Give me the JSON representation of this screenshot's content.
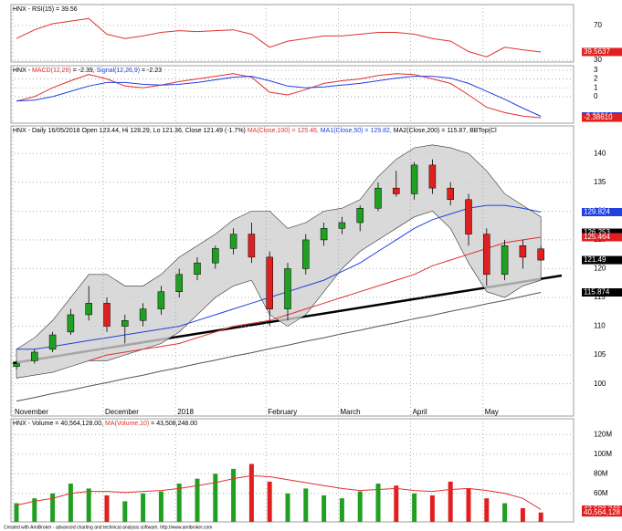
{
  "chart_data": [
    {
      "type": "line",
      "title": [
        {
          "text": "HNX - RSI(15) = 39.56",
          "color": "#000000"
        }
      ],
      "ylim": [
        28,
        94
      ],
      "yticks": [
        30,
        70
      ],
      "series": [
        {
          "name": "RSI(15)",
          "color": "#e03030",
          "values": [
            55,
            65,
            72,
            75,
            78,
            60,
            55,
            58,
            62,
            64,
            63,
            64,
            65,
            60,
            45,
            52,
            55,
            58,
            58,
            60,
            62,
            62,
            60,
            55,
            52,
            40,
            34,
            45,
            42,
            39.56
          ]
        }
      ],
      "price_tags": [
        {
          "value": 39.5637,
          "label": "39.5637",
          "color": "#e02020"
        }
      ]
    },
    {
      "type": "line",
      "title": [
        {
          "text": "HNX - ",
          "color": "#000000"
        },
        {
          "text": "MACD(12,26)",
          "color": "#e03030"
        },
        {
          "text": " = -2.39, ",
          "color": "#000000"
        },
        {
          "text": "Signal(12,26,9)",
          "color": "#2040e0"
        },
        {
          "text": " = -2.23",
          "color": "#000000"
        }
      ],
      "ylim": [
        -3,
        3.5
      ],
      "yticks": [
        3,
        2,
        1,
        0
      ],
      "series": [
        {
          "name": "MACD(12,26)",
          "color": "#e03030",
          "values": [
            -0.5,
            0,
            1,
            1.8,
            2.5,
            2,
            1.2,
            1,
            1.3,
            1.7,
            2,
            2.3,
            2.6,
            2.2,
            0.5,
            0.2,
            0.8,
            1.5,
            1.8,
            2,
            2.4,
            2.6,
            2.5,
            2,
            1.5,
            0.2,
            -1.2,
            -1.8,
            -2.2,
            -2.39
          ]
        },
        {
          "name": "Signal(12,26,9)",
          "color": "#2040e0",
          "values": [
            -0.5,
            -0.4,
            0,
            0.6,
            1.2,
            1.6,
            1.6,
            1.4,
            1.3,
            1.4,
            1.6,
            1.9,
            2.2,
            2.3,
            1.8,
            1.2,
            1,
            1.1,
            1.3,
            1.5,
            1.8,
            2.1,
            2.3,
            2.3,
            2.1,
            1.5,
            0.6,
            -0.3,
            -1.3,
            -2.23
          ]
        }
      ],
      "price_tags": [
        {
          "value": -2.23064,
          "label": "-2.23064",
          "color": "#2040e0"
        },
        {
          "value": -2.3861,
          "label": "-2.38610",
          "color": "#e02020"
        }
      ]
    },
    {
      "type": "candlestick",
      "title": [
        {
          "text": "HNX - Daily 16/05/2018 Open 123.44, Hi 128.29, Lo 121.36, Close 121.49 (-1.7%) ",
          "color": "#000000"
        },
        {
          "text": "MA(Close,100) = 125.46, ",
          "color": "#e03030"
        },
        {
          "text": "MA1(Close,50) = 129.82, ",
          "color": "#2040e0"
        },
        {
          "text": "MA2(Close,200) = 115.87, BBTop(Cl",
          "color": "#000000"
        }
      ],
      "categories": [
        "November",
        null,
        null,
        null,
        null,
        "December",
        null,
        null,
        null,
        "2018",
        null,
        null,
        null,
        null,
        "February",
        null,
        null,
        null,
        "March",
        null,
        null,
        null,
        "April",
        null,
        null,
        null,
        "May",
        null,
        null,
        null
      ],
      "ylim": [
        94.4,
        144.8
      ],
      "yticks": [
        100,
        105,
        110,
        115,
        120,
        125,
        130,
        135,
        140
      ],
      "up_color": "#20a020",
      "down_color": "#e02020",
      "open": [
        103,
        104,
        106,
        109,
        112,
        114,
        110,
        111,
        113,
        116,
        119,
        121,
        123.5,
        126,
        122,
        113,
        120,
        125,
        127,
        128,
        130.5,
        134,
        133,
        138,
        134,
        132,
        126,
        119,
        124,
        123.44
      ],
      "high": [
        104,
        106,
        109,
        113,
        117,
        115,
        112,
        114,
        117,
        120,
        122,
        124,
        127,
        128,
        123,
        121,
        126,
        128,
        129,
        131,
        135,
        137,
        138.5,
        139,
        135,
        133,
        127,
        125,
        125,
        124
      ],
      "low": [
        102.5,
        103.5,
        105.5,
        108.5,
        111,
        109,
        107,
        110,
        112,
        115,
        118,
        120,
        122.5,
        121,
        110,
        111,
        119,
        124,
        126,
        126.5,
        130,
        132.5,
        132,
        133,
        131,
        124,
        117,
        118,
        120,
        121.36
      ],
      "close": [
        103.5,
        105.5,
        108.5,
        112,
        114,
        110,
        111,
        113,
        116,
        119,
        121,
        123.5,
        126,
        122,
        113,
        120,
        125,
        127,
        128,
        130.5,
        134,
        133,
        138,
        134,
        132,
        126,
        119,
        124,
        122,
        121.49
      ],
      "bands": {
        "color": "#d0d0d0",
        "upper": [
          106,
          108,
          111,
          115,
          119,
          119,
          117,
          117,
          119,
          122,
          124,
          126,
          128.5,
          130,
          130,
          127,
          128,
          130,
          130.5,
          132,
          136,
          139,
          141,
          141.5,
          141,
          140,
          137,
          133,
          131,
          129
        ],
        "lower": [
          101,
          101.5,
          102,
          103,
          104,
          104,
          105,
          106,
          107,
          109,
          112,
          115,
          117,
          118,
          112,
          110,
          112,
          116,
          120,
          123,
          125,
          127,
          129,
          130,
          127,
          121,
          116,
          115,
          117,
          118
        ]
      },
      "series": [
        {
          "name": "MA(Close,100)",
          "color": "#e03030",
          "values": [
            null,
            null,
            null,
            null,
            104,
            105,
            105.5,
            106,
            106.5,
            107,
            108,
            109,
            110,
            110.5,
            111,
            112,
            113,
            114,
            115,
            116,
            117,
            118,
            119,
            120.5,
            121.5,
            122.5,
            123.5,
            124.5,
            125,
            125.46
          ]
        },
        {
          "name": "MA1(Close,50)",
          "color": "#2040e0",
          "values": [
            106,
            106,
            106.5,
            107,
            107.5,
            108,
            108.5,
            109,
            109.5,
            110,
            111,
            112,
            113,
            114,
            115,
            116,
            117,
            118,
            119.5,
            121,
            123,
            125,
            127,
            128.5,
            129.5,
            130.5,
            131,
            131,
            130.5,
            129.82
          ]
        },
        {
          "name": "MA2(Close,200)",
          "color": "#555555",
          "values": [
            97,
            97.6,
            98.3,
            98.9,
            99.6,
            100.2,
            100.9,
            101.5,
            102.2,
            102.8,
            103.5,
            104.1,
            104.8,
            105.4,
            106.1,
            106.7,
            107.4,
            108,
            108.7,
            109.3,
            110,
            110.6,
            111.3,
            111.9,
            112.6,
            113.2,
            113.9,
            114.5,
            115.2,
            115.87
          ]
        }
      ],
      "price_tags": [
        {
          "value": 129.824,
          "label": "129.824",
          "color": "#2040e0"
        },
        {
          "value": 126.253,
          "label": "126.253",
          "color": "#000000"
        },
        {
          "value": 125.464,
          "label": "125.464",
          "color": "#e02020"
        },
        {
          "value": 121.49,
          "label": "121.49",
          "color": "#000000"
        },
        {
          "value": 115.874,
          "label": "115.874",
          "color": "#000000"
        }
      ]
    },
    {
      "type": "bar",
      "title": [
        {
          "text": "HNX - Volume = 40,564,128.00, ",
          "color": "#000000"
        },
        {
          "text": "MA(Volume,10)",
          "color": "#e03030"
        },
        {
          "text": " = 43,508,248.00",
          "color": "#000000"
        }
      ],
      "ylim": [
        31000000,
        136000000
      ],
      "yticks": [
        {
          "value": 60000000,
          "label": "60M"
        },
        {
          "value": 80000000,
          "label": "80M"
        },
        {
          "value": 100000000,
          "label": "100M"
        },
        {
          "value": 120000000,
          "label": "120M"
        }
      ],
      "values": [
        50000000,
        55000000,
        60000000,
        70000000,
        65000000,
        58000000,
        52000000,
        60000000,
        62000000,
        70000000,
        75000000,
        80000000,
        85000000,
        90000000,
        72000000,
        60000000,
        65000000,
        58000000,
        55000000,
        62000000,
        70000000,
        68000000,
        60000000,
        58000000,
        72000000,
        65000000,
        55000000,
        50000000,
        45000000,
        40564128
      ],
      "series": [
        {
          "name": "MA(Volume,10)",
          "color": "#e03030",
          "values": [
            48000000,
            52000000,
            55000000,
            60000000,
            62000000,
            62000000,
            61000000,
            62000000,
            63000000,
            65000000,
            68000000,
            71000000,
            75000000,
            78000000,
            77000000,
            74000000,
            71000000,
            68000000,
            65000000,
            63000000,
            64000000,
            65000000,
            63000000,
            62000000,
            64000000,
            65000000,
            63000000,
            60000000,
            55000000,
            43508248
          ]
        }
      ],
      "price_tags": [
        {
          "value": 43508248,
          "label": "43,508,248",
          "color": "#e02020"
        },
        {
          "value": 40564128,
          "label": "40,564,128",
          "color": "#e02020"
        }
      ]
    }
  ],
  "footer": "Created with AmiBroker - advanced charting and technical analysis software. http://www.amibroker.com"
}
